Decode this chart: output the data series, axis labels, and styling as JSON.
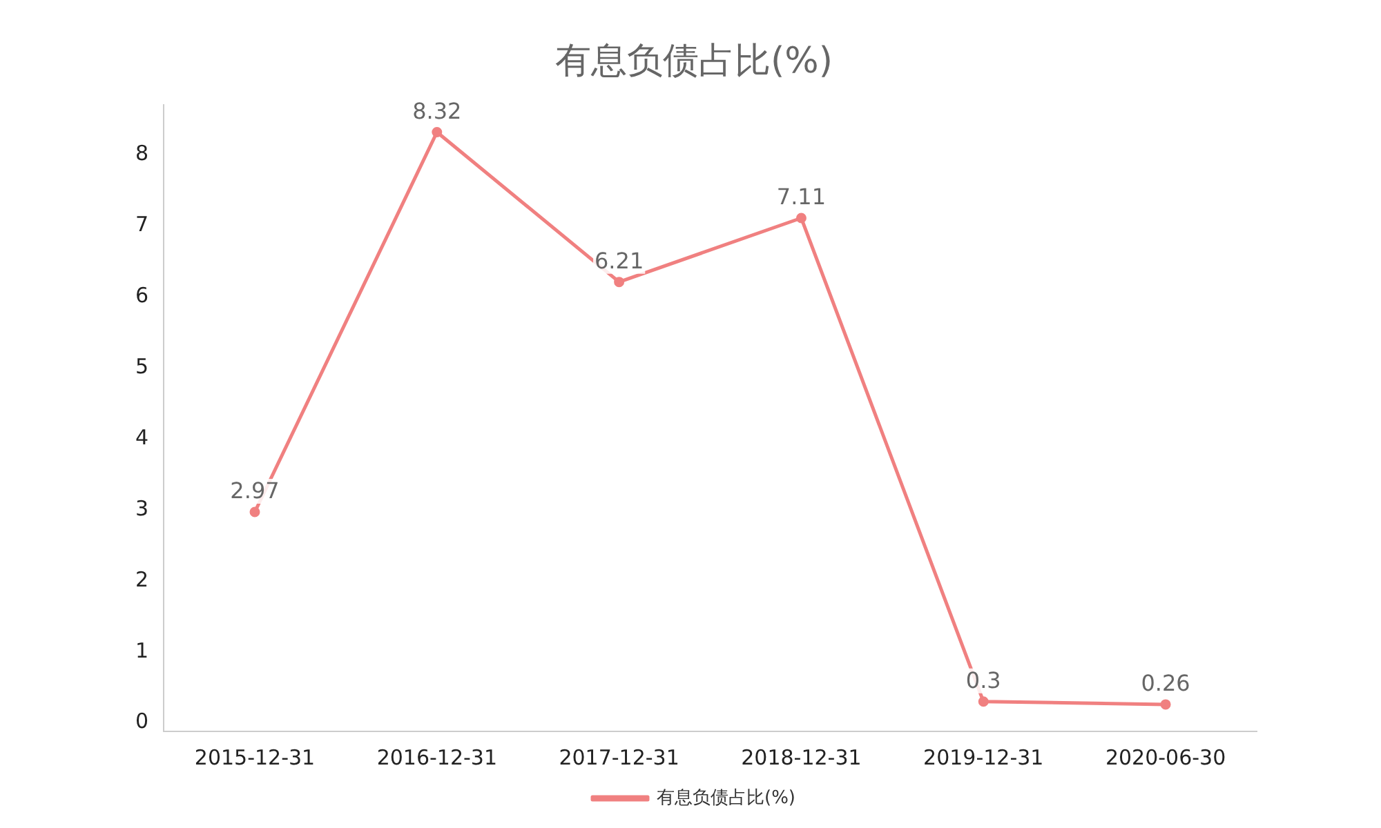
{
  "chart_data": {
    "type": "line",
    "title": "有息负债占比(%)",
    "categories": [
      "2015-12-31",
      "2016-12-31",
      "2017-12-31",
      "2018-12-31",
      "2019-12-31",
      "2020-06-30"
    ],
    "series": [
      {
        "name": "有息负债占比(%)",
        "color": "#f08080",
        "values": [
          2.97,
          8.32,
          6.21,
          7.11,
          0.3,
          0.26
        ]
      }
    ],
    "ylim": [
      -0.12,
      8.7
    ],
    "yticks": [
      0,
      1,
      2,
      3,
      4,
      5,
      6,
      7,
      8
    ],
    "grid": false,
    "legend": "bottom",
    "marker": "circle",
    "line_style": "solid",
    "data_labels": true
  }
}
